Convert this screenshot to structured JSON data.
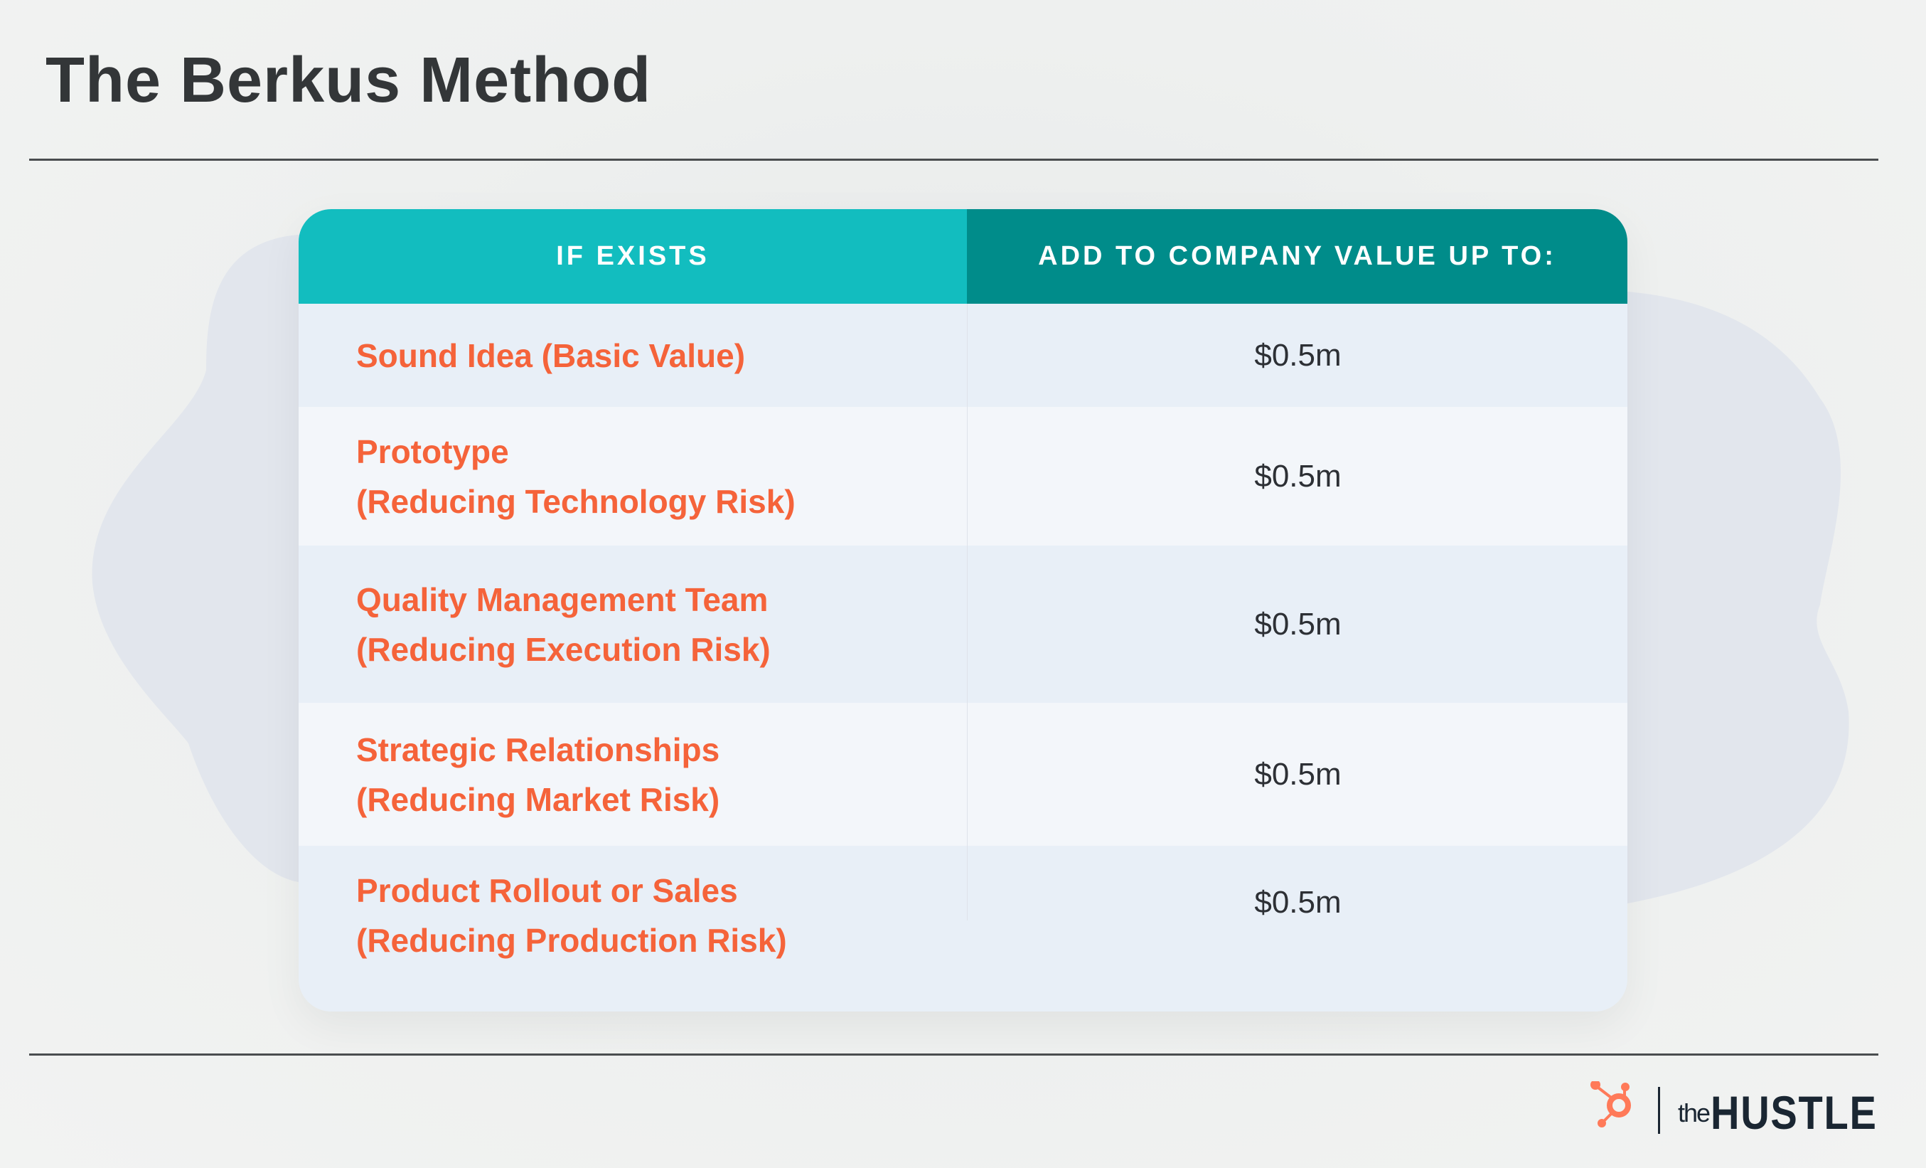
{
  "title": "The Berkus Method",
  "table": {
    "headers": [
      "IF EXISTS",
      "ADD TO COMPANY VALUE UP TO:"
    ],
    "rows": [
      {
        "factor": [
          "Sound Idea (Basic Value)"
        ],
        "value": "$0.5m"
      },
      {
        "factor": [
          "Prototype",
          "(Reducing Technology Risk)"
        ],
        "value": "$0.5m"
      },
      {
        "factor": [
          "Quality Management Team",
          "(Reducing Execution Risk)"
        ],
        "value": "$0.5m"
      },
      {
        "factor": [
          "Strategic Relationships",
          "(Reducing Market Risk)"
        ],
        "value": "$0.5m"
      },
      {
        "factor": [
          "Product Rollout or Sales",
          "(Reducing Production Risk)"
        ],
        "value": "$0.5m"
      }
    ]
  },
  "logo": {
    "prefix": "the",
    "name": "HUSTLE",
    "icon": "hubspot-sprocket-icon"
  },
  "colors": {
    "header_left": "#12bdbf",
    "header_right": "#008c8a",
    "factor_text": "#f5633a",
    "hubspot_orange": "#ff7a59"
  }
}
